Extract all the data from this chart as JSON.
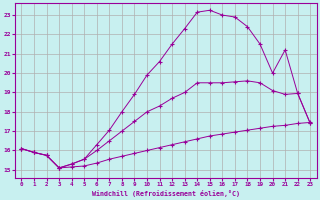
{
  "xlabel": "Windchill (Refroidissement éolien,°C)",
  "bg_color": "#c8f0f0",
  "line_color": "#990099",
  "grid_color": "#b0b0b0",
  "xlim": [
    -0.5,
    23.5
  ],
  "ylim": [
    14.6,
    23.6
  ],
  "xticks": [
    0,
    1,
    2,
    3,
    4,
    5,
    6,
    7,
    8,
    9,
    10,
    11,
    12,
    13,
    14,
    15,
    16,
    17,
    18,
    19,
    20,
    21,
    22,
    23
  ],
  "yticks": [
    15,
    16,
    17,
    18,
    19,
    20,
    21,
    22,
    23
  ],
  "series1_x": [
    0,
    1,
    2,
    3,
    4,
    5,
    6,
    7,
    8,
    9,
    10,
    11,
    12,
    13,
    14,
    15,
    16,
    17,
    18,
    19,
    20,
    21,
    22,
    23
  ],
  "series1_y": [
    16.1,
    15.9,
    15.75,
    15.1,
    15.15,
    15.2,
    15.35,
    15.55,
    15.7,
    15.85,
    16.0,
    16.15,
    16.3,
    16.45,
    16.6,
    16.75,
    16.85,
    16.95,
    17.05,
    17.15,
    17.25,
    17.3,
    17.4,
    17.45
  ],
  "series2_x": [
    0,
    1,
    2,
    3,
    4,
    5,
    6,
    7,
    8,
    9,
    10,
    11,
    12,
    13,
    14,
    15,
    16,
    17,
    18,
    19,
    20,
    21,
    22,
    23
  ],
  "series2_y": [
    16.1,
    15.9,
    15.75,
    15.1,
    15.3,
    15.55,
    16.0,
    16.5,
    17.0,
    17.5,
    18.0,
    18.3,
    18.7,
    19.0,
    19.5,
    19.5,
    19.5,
    19.55,
    19.6,
    19.5,
    19.1,
    18.9,
    18.95,
    17.4
  ],
  "series3_x": [
    0,
    1,
    2,
    3,
    4,
    5,
    6,
    7,
    8,
    9,
    10,
    11,
    12,
    13,
    14,
    15,
    16,
    17,
    18,
    19,
    20,
    21,
    22,
    23
  ],
  "series3_y": [
    16.1,
    15.9,
    15.75,
    15.1,
    15.3,
    15.55,
    16.3,
    17.05,
    18.0,
    18.9,
    19.9,
    20.6,
    21.5,
    22.3,
    23.15,
    23.25,
    23.0,
    22.9,
    22.4,
    21.5,
    20.0,
    21.2,
    18.95,
    17.4
  ]
}
